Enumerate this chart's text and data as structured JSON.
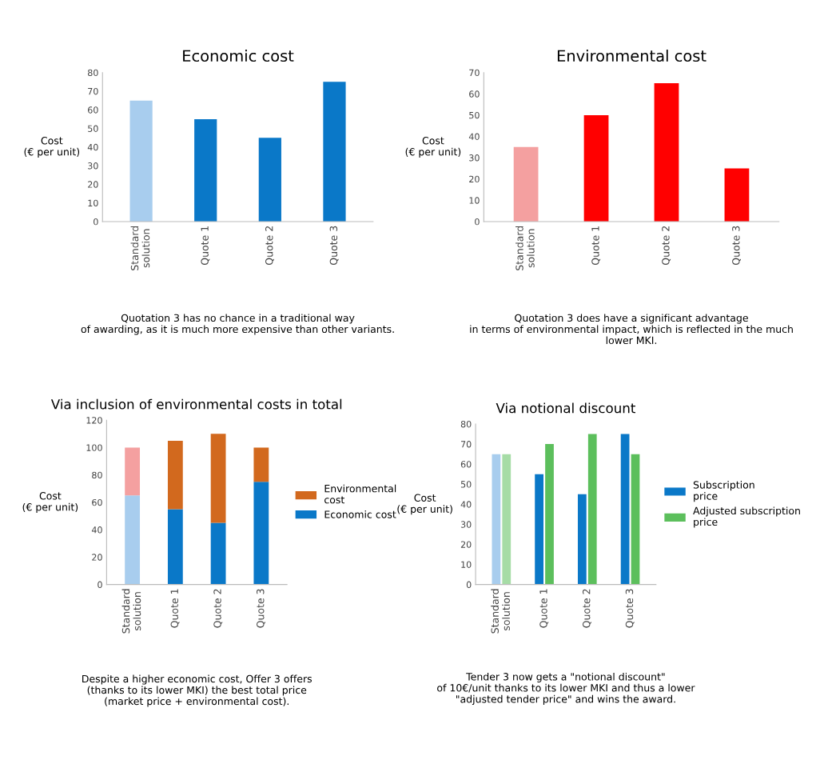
{
  "chart_data": [
    {
      "type": "bar",
      "title": "Economic cost",
      "ylabel": "Cost\n(€ per unit)",
      "categories": [
        "Standard\nsolution",
        "Quote 1",
        "Quote 2",
        "Quote 3"
      ],
      "values": [
        65,
        55,
        45,
        75
      ],
      "colors": [
        "#a8cdee",
        "#0a78c8",
        "#0a78c8",
        "#0a78c8"
      ],
      "ylim": [
        0,
        80
      ],
      "yticks": [
        0,
        10,
        20,
        30,
        40,
        50,
        60,
        70,
        80
      ],
      "annotations": [
        "Quotation 3 has no chance in a traditional way\nof awarding, as it is much more expensive than other variants."
      ]
    },
    {
      "type": "bar",
      "title": "Environmental cost",
      "ylabel": "Cost\n(€ per unit)",
      "categories": [
        "Standard\nsolution",
        "Quote 1",
        "Quote 2",
        "Quote 3"
      ],
      "values": [
        35,
        50,
        65,
        25
      ],
      "colors": [
        "#f4a0a0",
        "#ff0000",
        "#ff0000",
        "#ff0000"
      ],
      "ylim": [
        0,
        70
      ],
      "yticks": [
        0,
        10,
        20,
        30,
        40,
        50,
        60,
        70
      ],
      "annotations": [
        "Quotation 3 does have a significant advantage\nin terms of environmental impact, which is reflected in the much\nlower MKI."
      ]
    },
    {
      "type": "bar",
      "stacked": true,
      "title": "Via inclusion of environmental costs in total",
      "ylabel": "Cost\n(€ per unit)",
      "categories": [
        "Standard\nsolution",
        "Quote 1",
        "Quote 2",
        "Quote 3"
      ],
      "legend": "right",
      "ylim": [
        0,
        120
      ],
      "yticks": [
        0,
        20,
        40,
        60,
        80,
        100,
        120
      ],
      "annotations": [
        "Despite a higher economic cost, Offer 3 offers\n(thanks to its lower MKI) the best total price\n(market price + environmental cost)."
      ],
      "series": [
        {
          "name": "Economic cost",
          "color": "#0a78c8",
          "colors": [
            "#a8cdee",
            "#0a78c8",
            "#0a78c8",
            "#0a78c8"
          ],
          "values": [
            65,
            55,
            45,
            75
          ]
        },
        {
          "name": "Environmental\ncost",
          "color": "#d2691e",
          "colors": [
            "#f4a0a0",
            "#d2691e",
            "#d2691e",
            "#d2691e"
          ],
          "values": [
            35,
            50,
            65,
            25
          ]
        }
      ]
    },
    {
      "type": "bar",
      "title": "Via notional discount",
      "ylabel": "Cost\n(€ per unit)",
      "categories": [
        "Standard\nsolution",
        "Quote 1",
        "Quote 2",
        "Quote 3"
      ],
      "legend": "right",
      "ylim": [
        0,
        80
      ],
      "yticks": [
        0,
        10,
        20,
        30,
        40,
        50,
        60,
        70,
        80
      ],
      "annotations": [
        "Tender 3 now gets a \"notional discount\"\nof 10€/unit thanks to its lower MKI and thus a lower\n\"adjusted tender price\" and wins the award."
      ],
      "series": [
        {
          "name": "Subscription\nprice",
          "color": "#0a78c8",
          "colors": [
            "#a8cdee",
            "#0a78c8",
            "#0a78c8",
            "#0a78c8"
          ],
          "values": [
            65,
            55,
            45,
            75
          ]
        },
        {
          "name": "Adjusted subscription\nprice",
          "color": "#5cbf5c",
          "colors": [
            "#a6dca6",
            "#5cbf5c",
            "#5cbf5c",
            "#5cbf5c"
          ],
          "values": [
            65,
            70,
            75,
            65
          ]
        }
      ]
    }
  ]
}
